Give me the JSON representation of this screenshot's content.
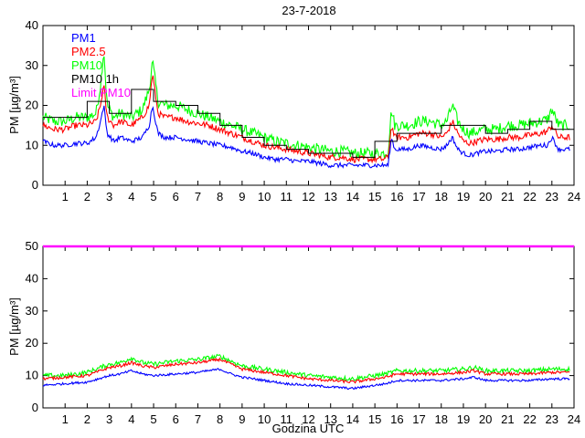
{
  "colors": {
    "pm1": "#0000ff",
    "pm25": "#ff0000",
    "pm10": "#00ff00",
    "pm10_1h": "#000000",
    "limit": "#ff00ff"
  },
  "chart_data": [
    {
      "type": "line",
      "title": "23-7-2018",
      "xlabel": "",
      "ylabel": "PM [µg/m³]",
      "xlim": [
        0,
        24
      ],
      "ylim": [
        0,
        40
      ],
      "xticks": [
        1,
        2,
        3,
        4,
        5,
        6,
        7,
        8,
        9,
        10,
        11,
        12,
        13,
        14,
        15,
        16,
        17,
        18,
        19,
        20,
        21,
        22,
        23,
        24
      ],
      "yticks": [
        0,
        10,
        20,
        30,
        40
      ],
      "legend": {
        "placement": "top-left",
        "entries": [
          {
            "label": "PM1",
            "color": "#0000ff"
          },
          {
            "label": "PM2.5",
            "color": "#ff0000"
          },
          {
            "label": "PM10",
            "color": "#00ff00"
          },
          {
            "label": "PM10 1h",
            "color": "#000000"
          },
          {
            "label": "Limit PM10",
            "color": "#ff00ff"
          }
        ]
      },
      "x": [
        0,
        0.5,
        1,
        1.5,
        2,
        2.4,
        2.6,
        2.75,
        2.9,
        3.2,
        3.5,
        4,
        4.5,
        4.8,
        4.95,
        5.2,
        5.5,
        6,
        6.5,
        7,
        7.5,
        8,
        8.5,
        9,
        9.5,
        10,
        10.5,
        11,
        11.5,
        12,
        12.5,
        13,
        13.5,
        14,
        14.5,
        15,
        15.4,
        15.6,
        15.75,
        15.9,
        16.2,
        16.5,
        17,
        17.5,
        18,
        18.25,
        18.5,
        18.75,
        19,
        19.3,
        19.6,
        20,
        20.5,
        21,
        21.5,
        22,
        22.5,
        22.8,
        23,
        23.3,
        23.8
      ],
      "series": [
        {
          "name": "PM1",
          "values": [
            11,
            10,
            10,
            10.5,
            10.5,
            12,
            16,
            20,
            13,
            11,
            12,
            11,
            12,
            15,
            20,
            13,
            12,
            12,
            11.5,
            11,
            10.5,
            10,
            9.5,
            8.5,
            8,
            7,
            6.5,
            6.5,
            6,
            6,
            5.5,
            5,
            5,
            5,
            5,
            5,
            5,
            5,
            12,
            9,
            9,
            9,
            10,
            9.5,
            9,
            10,
            12,
            9,
            8,
            7.5,
            8,
            8.5,
            8.5,
            9,
            9,
            9.5,
            10,
            10,
            12,
            9,
            9
          ]
        },
        {
          "name": "PM2.5",
          "values": [
            15,
            14,
            14,
            15,
            15,
            16,
            20,
            25,
            17,
            15,
            16,
            15,
            17,
            20,
            28,
            18,
            17,
            17,
            16,
            15.5,
            15,
            14,
            13,
            12,
            11,
            10,
            9.5,
            9,
            8.5,
            8,
            7.5,
            7,
            7,
            6.5,
            6.5,
            6.5,
            6.5,
            7,
            15,
            12,
            12,
            12,
            13,
            13,
            12,
            13,
            16,
            13,
            11,
            10.5,
            11,
            11.5,
            11.5,
            12,
            12,
            12.5,
            13,
            13.5,
            15,
            12,
            12
          ]
        },
        {
          "name": "PM10",
          "values": [
            17,
            16,
            16,
            17,
            17,
            18,
            25,
            34,
            20,
            17,
            18,
            17,
            19,
            24,
            31,
            21,
            20,
            20,
            19,
            18,
            17,
            16,
            15,
            14,
            13,
            12,
            11,
            10.5,
            10,
            9.5,
            9,
            8.5,
            8.5,
            8,
            8,
            8,
            8,
            8.5,
            19,
            15,
            15,
            15,
            16,
            16,
            15,
            16,
            20,
            16,
            14,
            13,
            13.5,
            14,
            14,
            15,
            15,
            15.5,
            16,
            16.5,
            19,
            15,
            15
          ]
        }
      ],
      "step_series": {
        "name": "PM10 1h",
        "hours": [
          0,
          1,
          2,
          3,
          4,
          5,
          6,
          7,
          8,
          9,
          10,
          11,
          12,
          13,
          14,
          15,
          16,
          17,
          18,
          19,
          20,
          21,
          22,
          23
        ],
        "values": [
          17,
          17,
          21,
          18,
          24,
          21,
          20,
          18,
          15,
          12,
          10,
          9,
          8,
          8,
          7,
          11,
          13,
          13,
          15,
          15,
          13,
          14,
          16,
          14
        ]
      }
    },
    {
      "type": "line",
      "title": "",
      "xlabel": "Godzina UTC",
      "ylabel": "PM [µg/m³]",
      "xlim": [
        0,
        24
      ],
      "ylim": [
        0,
        50
      ],
      "xticks": [
        1,
        2,
        3,
        4,
        5,
        6,
        7,
        8,
        9,
        10,
        11,
        12,
        13,
        14,
        15,
        16,
        17,
        18,
        19,
        20,
        21,
        22,
        23,
        24
      ],
      "yticks": [
        0,
        10,
        20,
        30,
        40,
        50
      ],
      "limit": {
        "name": "Limit PM10",
        "value": 50
      },
      "x": [
        0,
        1,
        2,
        3,
        3.5,
        4,
        4.5,
        5,
        6,
        7,
        7.5,
        8,
        8.5,
        9,
        10,
        11,
        12,
        13,
        14,
        15,
        15.5,
        16,
        17,
        18,
        19,
        19.5,
        20,
        21,
        22,
        23,
        23.8
      ],
      "series": [
        {
          "name": "PM1",
          "values": [
            7,
            7.5,
            8,
            10,
            10.5,
            11.5,
            10.5,
            10,
            10.5,
            11,
            11.5,
            12,
            10.5,
            9.5,
            8.5,
            7.5,
            7,
            6.5,
            6,
            7,
            7.5,
            8.5,
            8.5,
            8.5,
            9,
            9.5,
            8.5,
            8.5,
            8.5,
            9,
            9
          ]
        },
        {
          "name": "PM2.5",
          "values": [
            9,
            9.5,
            10,
            12.5,
            13,
            14,
            13,
            12.5,
            13.5,
            14,
            14.5,
            15,
            13.5,
            12,
            11,
            10,
            9,
            8.5,
            8,
            9,
            9.5,
            10.5,
            10.5,
            10.5,
            11,
            11.5,
            10.5,
            10.5,
            10.5,
            11,
            11
          ]
        },
        {
          "name": "PM10",
          "values": [
            10,
            10,
            11,
            13.5,
            14,
            15.5,
            14,
            13.5,
            14.5,
            15,
            15.5,
            16,
            14.5,
            13,
            12,
            11,
            10,
            9.5,
            9,
            10,
            10.5,
            11.5,
            11.5,
            11.5,
            12,
            12.5,
            11.5,
            11.5,
            11.5,
            12,
            12
          ]
        }
      ]
    }
  ]
}
